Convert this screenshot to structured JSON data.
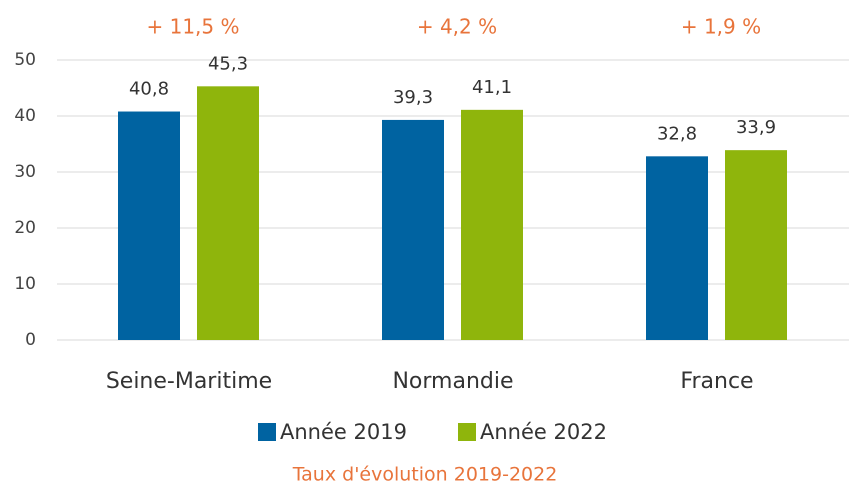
{
  "chart_data": {
    "type": "bar",
    "categories": [
      "Seine-Maritime",
      "Normandie",
      "France"
    ],
    "series": [
      {
        "name": "Année 2019",
        "color": "#0063a1",
        "values": [
          40.8,
          39.3,
          32.8
        ],
        "value_labels": [
          "40,8",
          "39,3",
          "32,8"
        ]
      },
      {
        "name": "Année 2022",
        "color": "#8fb50c",
        "values": [
          45.3,
          41.1,
          33.9
        ],
        "value_labels": [
          "45,3",
          "41,1",
          "33,9"
        ]
      }
    ],
    "annotations": [
      "+ 11,5 %",
      "+ 4,2 %",
      "+ 1,9 %"
    ],
    "footer": "Taux d'évolution 2019-2022",
    "ylim": [
      0,
      50
    ],
    "yticks": [
      0,
      10,
      20,
      30,
      40,
      50
    ],
    "grid": true
  }
}
